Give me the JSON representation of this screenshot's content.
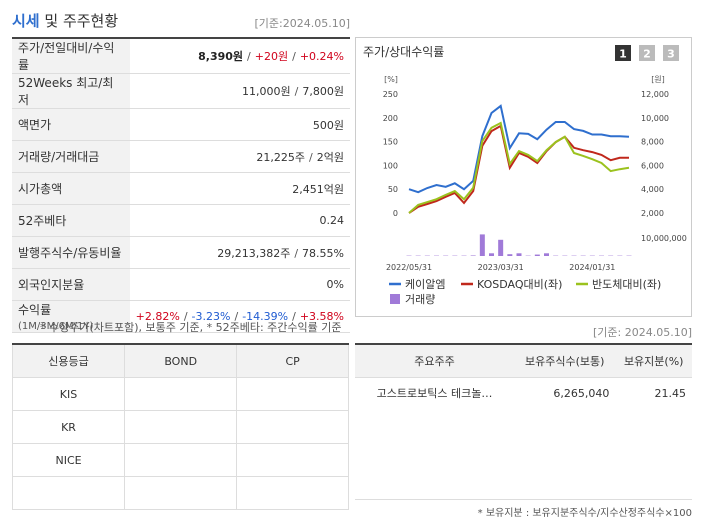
{
  "header": {
    "title_main": "시세",
    "title_rest": "및 주주현황",
    "date": "[기준:2024.05.10]"
  },
  "quote_table": {
    "rows": [
      {
        "label": "주가/전일대비/수익률",
        "value": [
          {
            "text": "8,390원",
            "color": "#222222",
            "bold": true
          },
          {
            "text": "/"
          },
          {
            "text": "+20원",
            "color": "#d0021b"
          },
          {
            "text": "/"
          },
          {
            "text": "+0.24%",
            "color": "#d0021b"
          }
        ]
      },
      {
        "label": "52Weeks 최고/최저",
        "value": [
          {
            "text": "11,000원"
          },
          {
            "text": "/"
          },
          {
            "text": "7,800원"
          }
        ]
      },
      {
        "label": "액면가",
        "value": [
          {
            "text": "500원"
          }
        ]
      },
      {
        "label": "거래량/거래대금",
        "value": [
          {
            "text": "21,225주"
          },
          {
            "text": "/"
          },
          {
            "text": "2억원"
          }
        ]
      },
      {
        "label": "시가총액",
        "value": [
          {
            "text": "2,451억원"
          }
        ]
      },
      {
        "label": "52주베타",
        "value": [
          {
            "text": "0.24"
          }
        ]
      },
      {
        "label": "발행주식수/유동비율",
        "value": [
          {
            "text": "29,213,382주"
          },
          {
            "text": "/"
          },
          {
            "text": "78.55%"
          }
        ]
      },
      {
        "label": "외국인지분율",
        "value": [
          {
            "text": "0%"
          }
        ]
      },
      {
        "label": "수익률",
        "sublabel": "(1M/3M/6M/1Y)",
        "value": [
          {
            "text": "+2.82%",
            "color": "#d0021b"
          },
          {
            "text": "/"
          },
          {
            "text": "-3.23%",
            "color": "#1f5bd1"
          },
          {
            "text": "/"
          },
          {
            "text": "-14.39%",
            "color": "#1f5bd1"
          },
          {
            "text": "/"
          },
          {
            "text": "+3.58%",
            "color": "#d0021b"
          }
        ]
      }
    ]
  },
  "note": "* 수정주가(차트포함), 보통주 기준, * 52주베타: 주간수익률 기준",
  "chart": {
    "type": "line",
    "title": "주가/상대수익률",
    "tabs": [
      "1",
      "2",
      "3"
    ],
    "y_unit": "[%]",
    "y2_unit": "[원]",
    "categories": [
      "2022/05/31",
      null,
      null,
      null,
      null,
      null,
      null,
      null,
      null,
      null,
      "2023/03/31",
      null,
      null,
      null,
      null,
      null,
      null,
      null,
      null,
      null,
      "2024/01/31",
      null,
      null,
      null,
      null
    ],
    "ylim": [
      0,
      250
    ],
    "yticks": [
      0,
      50,
      100,
      150,
      200,
      250
    ],
    "y2lim": [
      2000,
      12000
    ],
    "y2ticks": [
      {
        "value": 2000,
        "label": "2,000"
      },
      {
        "value": 4000,
        "label": "4,000"
      },
      {
        "value": 6000,
        "label": "6,000"
      },
      {
        "value": 8000,
        "label": "8,000"
      },
      {
        "value": 10000,
        "label": "10,000"
      },
      {
        "value": 12000,
        "label": "12,000"
      }
    ],
    "volume_lim": [
      0,
      12000000
    ],
    "volume_ticks": [
      {
        "value": 10000000,
        "label": "10,000,000"
      }
    ],
    "series": [
      {
        "name": "케이알엠",
        "color": "#2f6fce",
        "axis": "y2",
        "values": [
          4000,
          3750,
          4100,
          4350,
          4200,
          4500,
          4000,
          4700,
          8450,
          10400,
          11000,
          7450,
          8700,
          8650,
          8200,
          9000,
          9650,
          9650,
          9050,
          8900,
          8600,
          8600,
          8450,
          8450,
          8400
        ]
      },
      {
        "name": "KOSDAQ대비(좌)",
        "color": "#c0281c",
        "values": [
          0,
          13,
          19,
          25,
          34,
          42,
          21,
          46,
          141,
          172,
          183,
          95,
          126,
          118,
          105,
          130,
          149,
          160,
          137,
          132,
          128,
          122,
          111,
          116,
          116
        ]
      },
      {
        "name": "반도체대비(좌)",
        "color": "#9bc21e",
        "values": [
          0,
          17,
          23,
          29,
          38,
          46,
          29,
          53,
          151,
          179,
          189,
          103,
          130,
          122,
          109,
          132,
          149,
          160,
          126,
          120,
          113,
          105,
          88,
          92,
          95
        ]
      }
    ],
    "volume": {
      "name": "거래량",
      "color": "#a07ad8",
      "values": [
        200000,
        200000,
        200000,
        200000,
        200000,
        200000,
        200000,
        300000,
        12000000,
        1500000,
        9000000,
        1000000,
        1500000,
        200000,
        800000,
        1500000,
        200000,
        200000,
        200000,
        200000,
        200000,
        200000,
        200000,
        200000,
        200000
      ]
    }
  },
  "credit_table": {
    "headers": [
      "신용등급",
      "BOND",
      "CP"
    ],
    "rows": [
      [
        "KIS"
      ],
      [
        "KR"
      ],
      [
        "NICE"
      ]
    ]
  },
  "holders": {
    "date": "[기준: 2024.05.10]",
    "headers": [
      "주요주주",
      "보유주식수(보통)",
      "보유지분(%)"
    ],
    "rows": [
      [
        "고스트로보틱스 테크놀…",
        "6,265,040",
        "21.45"
      ]
    ],
    "note": "* 보유지분 : 보유지분주식수/지수산정주식수×100"
  }
}
